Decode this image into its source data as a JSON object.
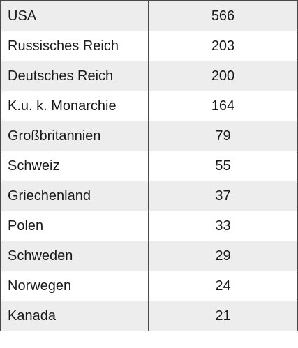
{
  "table": {
    "rows": [
      {
        "country": "USA",
        "value": "566"
      },
      {
        "country": "Russisches Reich",
        "value": "203"
      },
      {
        "country": "Deutsches Reich",
        "value": "200"
      },
      {
        "country": "K.u. k. Monarchie",
        "value": "164"
      },
      {
        "country": "Großbritannien",
        "value": "79"
      },
      {
        "country": "Schweiz",
        "value": "55"
      },
      {
        "country": "Griechenland",
        "value": "37"
      },
      {
        "country": "Polen",
        "value": "33"
      },
      {
        "country": "Schweden",
        "value": "29"
      },
      {
        "country": "Norwegen",
        "value": "24"
      },
      {
        "country": "Kanada",
        "value": "21"
      }
    ]
  },
  "colors": {
    "shaded_row": "#ededed",
    "plain_row": "#ffffff",
    "border": "#4a4a4a"
  }
}
